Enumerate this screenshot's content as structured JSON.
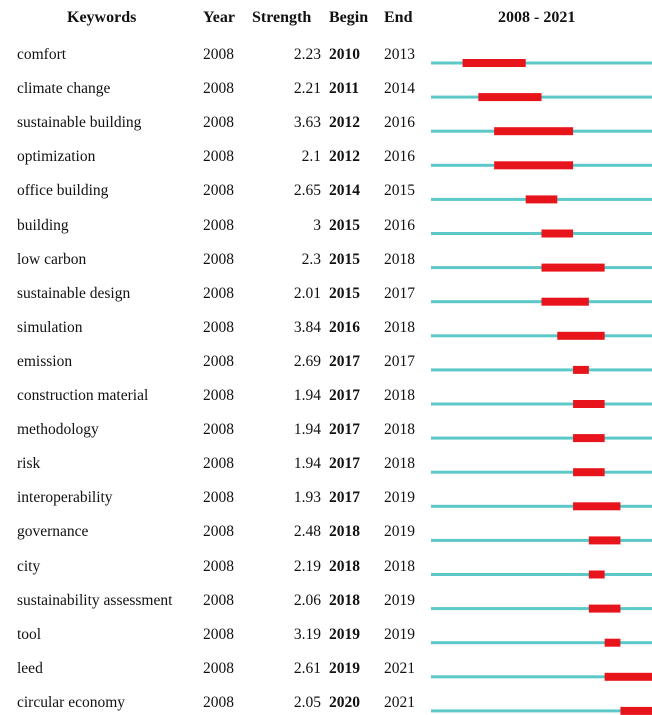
{
  "chart_data": {
    "type": "table",
    "headers": {
      "keywords": "Keywords",
      "year": "Year",
      "strength": "Strength",
      "begin": "Begin",
      "end": "End",
      "range": "2008 - 2021"
    },
    "timeline": {
      "start": 2008,
      "end": 2021
    },
    "colors": {
      "line": "#5cc8c8",
      "burst": "#e8141c"
    },
    "rows": [
      {
        "keyword": "comfort",
        "year": "2008",
        "strength": "2.23",
        "begin": "2010",
        "end": "2013"
      },
      {
        "keyword": "climate change",
        "year": "2008",
        "strength": "2.21",
        "begin": "2011",
        "end": "2014"
      },
      {
        "keyword": "sustainable building",
        "year": "2008",
        "strength": "3.63",
        "begin": "2012",
        "end": "2016"
      },
      {
        "keyword": "optimization",
        "year": "2008",
        "strength": "2.1",
        "begin": "2012",
        "end": "2016"
      },
      {
        "keyword": "office building",
        "year": "2008",
        "strength": "2.65",
        "begin": "2014",
        "end": "2015"
      },
      {
        "keyword": "building",
        "year": "2008",
        "strength": "3",
        "begin": "2015",
        "end": "2016"
      },
      {
        "keyword": "low carbon",
        "year": "2008",
        "strength": "2.3",
        "begin": "2015",
        "end": "2018"
      },
      {
        "keyword": "sustainable design",
        "year": "2008",
        "strength": "2.01",
        "begin": "2015",
        "end": "2017"
      },
      {
        "keyword": "simulation",
        "year": "2008",
        "strength": "3.84",
        "begin": "2016",
        "end": "2018"
      },
      {
        "keyword": "emission",
        "year": "2008",
        "strength": "2.69",
        "begin": "2017",
        "end": "2017"
      },
      {
        "keyword": "construction material",
        "year": "2008",
        "strength": "1.94",
        "begin": "2017",
        "end": "2018"
      },
      {
        "keyword": "methodology",
        "year": "2008",
        "strength": "1.94",
        "begin": "2017",
        "end": "2018"
      },
      {
        "keyword": "risk",
        "year": "2008",
        "strength": "1.94",
        "begin": "2017",
        "end": "2018"
      },
      {
        "keyword": "interoperability",
        "year": "2008",
        "strength": "1.93",
        "begin": "2017",
        "end": "2019"
      },
      {
        "keyword": "governance",
        "year": "2008",
        "strength": "2.48",
        "begin": "2018",
        "end": "2019"
      },
      {
        "keyword": "city",
        "year": "2008",
        "strength": "2.19",
        "begin": "2018",
        "end": "2018"
      },
      {
        "keyword": "sustainability assessment",
        "year": "2008",
        "strength": "2.06",
        "begin": "2018",
        "end": "2019"
      },
      {
        "keyword": "tool",
        "year": "2008",
        "strength": "3.19",
        "begin": "2019",
        "end": "2019"
      },
      {
        "keyword": "leed",
        "year": "2008",
        "strength": "2.61",
        "begin": "2019",
        "end": "2021"
      },
      {
        "keyword": "circular economy",
        "year": "2008",
        "strength": "2.05",
        "begin": "2020",
        "end": "2021"
      }
    ]
  }
}
